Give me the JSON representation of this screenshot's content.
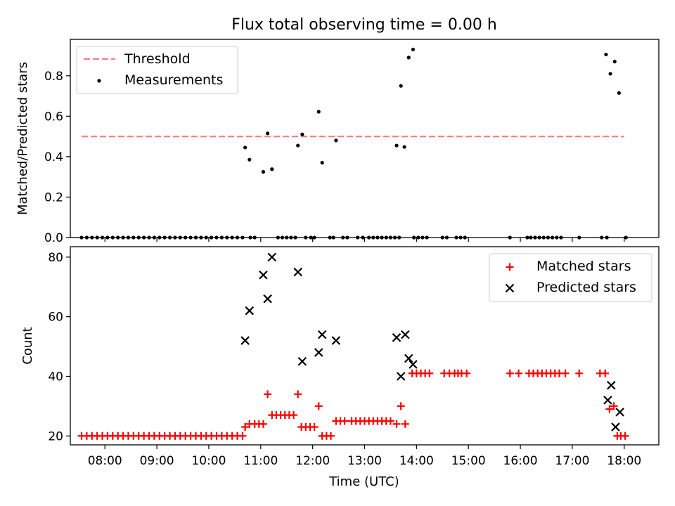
{
  "title": "Flux total observing time = 0.00 h",
  "colors": {
    "threshold": "#ff7f7f",
    "measurement": "#000000",
    "matched": "#ff0000",
    "predicted": "#000000"
  },
  "chart_data": [
    {
      "type": "scatter",
      "panel": "top",
      "xlabel": "",
      "ylabel": "Matched/Predicted stars",
      "xlim": [
        "07:20",
        "18:40"
      ],
      "ylim": [
        0,
        0.98
      ],
      "yticks": [
        0.0,
        0.2,
        0.4,
        0.6,
        0.8
      ],
      "ytick_labels": [
        "0.0",
        "0.2",
        "0.4",
        "0.6",
        "0.8"
      ],
      "legend_position": "top-left",
      "threshold": {
        "name": "Threshold",
        "value": 0.5,
        "x_range": [
          "07:33",
          "18:00"
        ]
      },
      "measurements": {
        "name": "Measurements",
        "points": [
          [
            "07:33",
            0
          ],
          [
            "07:39",
            0
          ],
          [
            "07:45",
            0
          ],
          [
            "07:51",
            0
          ],
          [
            "07:57",
            0
          ],
          [
            "08:03",
            0
          ],
          [
            "08:09",
            0
          ],
          [
            "08:15",
            0
          ],
          [
            "08:21",
            0
          ],
          [
            "08:27",
            0
          ],
          [
            "08:33",
            0
          ],
          [
            "08:39",
            0
          ],
          [
            "08:45",
            0
          ],
          [
            "08:51",
            0
          ],
          [
            "08:57",
            0
          ],
          [
            "09:03",
            0
          ],
          [
            "09:09",
            0
          ],
          [
            "09:15",
            0
          ],
          [
            "09:21",
            0
          ],
          [
            "09:27",
            0
          ],
          [
            "09:33",
            0
          ],
          [
            "09:39",
            0
          ],
          [
            "09:45",
            0
          ],
          [
            "09:51",
            0
          ],
          [
            "09:57",
            0
          ],
          [
            "10:03",
            0
          ],
          [
            "10:09",
            0
          ],
          [
            "10:15",
            0
          ],
          [
            "10:21",
            0
          ],
          [
            "10:27",
            0
          ],
          [
            "10:33",
            0
          ],
          [
            "10:39",
            0
          ],
          [
            "10:48",
            0
          ],
          [
            "10:53",
            0
          ],
          [
            "11:20",
            0
          ],
          [
            "11:25",
            0
          ],
          [
            "11:30",
            0
          ],
          [
            "11:35",
            0
          ],
          [
            "11:40",
            0
          ],
          [
            "11:52",
            0
          ],
          [
            "11:58",
            0
          ],
          [
            "12:02",
            0
          ],
          [
            "12:20",
            0
          ],
          [
            "12:24",
            0
          ],
          [
            "12:35",
            0
          ],
          [
            "12:40",
            0
          ],
          [
            "12:52",
            0
          ],
          [
            "12:58",
            0
          ],
          [
            "13:05",
            0
          ],
          [
            "13:10",
            0
          ],
          [
            "13:15",
            0
          ],
          [
            "13:20",
            0
          ],
          [
            "13:25",
            0
          ],
          [
            "13:30",
            0
          ],
          [
            "13:35",
            0
          ],
          [
            "13:40",
            0
          ],
          [
            "13:57",
            0
          ],
          [
            "14:02",
            0
          ],
          [
            "14:07",
            0
          ],
          [
            "14:12",
            0
          ],
          [
            "14:30",
            0
          ],
          [
            "14:35",
            0
          ],
          [
            "14:46",
            0
          ],
          [
            "14:51",
            0
          ],
          [
            "14:56",
            0
          ],
          [
            "15:48",
            0
          ],
          [
            "16:08",
            0
          ],
          [
            "16:12",
            0
          ],
          [
            "16:17",
            0
          ],
          [
            "16:22",
            0
          ],
          [
            "16:27",
            0
          ],
          [
            "16:32",
            0
          ],
          [
            "16:37",
            0
          ],
          [
            "16:42",
            0
          ],
          [
            "16:47",
            0
          ],
          [
            "17:08",
            0
          ],
          [
            "17:34",
            0
          ],
          [
            "17:40",
            0
          ],
          [
            "18:02",
            0
          ],
          [
            "10:42",
            0.445
          ],
          [
            "10:47",
            0.385
          ],
          [
            "11:03",
            0.325
          ],
          [
            "11:08",
            0.515
          ],
          [
            "11:13",
            0.338
          ],
          [
            "11:43",
            0.455
          ],
          [
            "11:48",
            0.51
          ],
          [
            "12:07",
            0.622
          ],
          [
            "12:11",
            0.37
          ],
          [
            "12:27",
            0.48
          ],
          [
            "13:37",
            0.455
          ],
          [
            "13:42",
            0.75
          ],
          [
            "13:46",
            0.448
          ],
          [
            "13:51",
            0.89
          ],
          [
            "13:56",
            0.93
          ],
          [
            "17:39",
            0.905
          ],
          [
            "17:44",
            0.81
          ],
          [
            "17:49",
            0.87
          ],
          [
            "17:54",
            0.715
          ]
        ]
      }
    },
    {
      "type": "scatter",
      "panel": "bottom",
      "xlabel": "Time (UTC)",
      "ylabel": "Count",
      "xlim": [
        "07:20",
        "18:40"
      ],
      "ylim": [
        17,
        83.5
      ],
      "xticks": [
        "08:00",
        "09:00",
        "10:00",
        "11:00",
        "12:00",
        "13:00",
        "14:00",
        "15:00",
        "16:00",
        "17:00",
        "18:00"
      ],
      "yticks": [
        20,
        40,
        60,
        80
      ],
      "ytick_labels": [
        "20",
        "40",
        "60",
        "80"
      ],
      "legend_position": "top-right",
      "series": [
        {
          "name": "Matched stars",
          "marker": "plus",
          "points": [
            [
              "07:33",
              20
            ],
            [
              "07:39",
              20
            ],
            [
              "07:45",
              20
            ],
            [
              "07:51",
              20
            ],
            [
              "07:57",
              20
            ],
            [
              "08:03",
              20
            ],
            [
              "08:09",
              20
            ],
            [
              "08:15",
              20
            ],
            [
              "08:21",
              20
            ],
            [
              "08:27",
              20
            ],
            [
              "08:33",
              20
            ],
            [
              "08:39",
              20
            ],
            [
              "08:45",
              20
            ],
            [
              "08:51",
              20
            ],
            [
              "08:57",
              20
            ],
            [
              "09:03",
              20
            ],
            [
              "09:09",
              20
            ],
            [
              "09:15",
              20
            ],
            [
              "09:21",
              20
            ],
            [
              "09:27",
              20
            ],
            [
              "09:33",
              20
            ],
            [
              "09:39",
              20
            ],
            [
              "09:45",
              20
            ],
            [
              "09:51",
              20
            ],
            [
              "09:57",
              20
            ],
            [
              "10:03",
              20
            ],
            [
              "10:09",
              20
            ],
            [
              "10:15",
              20
            ],
            [
              "10:21",
              20
            ],
            [
              "10:27",
              20
            ],
            [
              "10:33",
              20
            ],
            [
              "10:39",
              20
            ],
            [
              "10:42",
              23
            ],
            [
              "10:47",
              24
            ],
            [
              "10:53",
              24
            ],
            [
              "10:58",
              24
            ],
            [
              "11:03",
              24
            ],
            [
              "11:08",
              34
            ],
            [
              "11:13",
              27
            ],
            [
              "11:18",
              27
            ],
            [
              "11:23",
              27
            ],
            [
              "11:28",
              27
            ],
            [
              "11:33",
              27
            ],
            [
              "11:38",
              27
            ],
            [
              "11:43",
              34
            ],
            [
              "11:47",
              23
            ],
            [
              "11:52",
              23
            ],
            [
              "11:57",
              23
            ],
            [
              "12:02",
              23
            ],
            [
              "12:07",
              30
            ],
            [
              "12:11",
              20
            ],
            [
              "12:16",
              20
            ],
            [
              "12:21",
              20
            ],
            [
              "12:27",
              25
            ],
            [
              "12:32",
              25
            ],
            [
              "12:37",
              25
            ],
            [
              "12:45",
              25
            ],
            [
              "12:50",
              25
            ],
            [
              "12:55",
              25
            ],
            [
              "13:00",
              25
            ],
            [
              "13:05",
              25
            ],
            [
              "13:10",
              25
            ],
            [
              "13:15",
              25
            ],
            [
              "13:20",
              25
            ],
            [
              "13:25",
              25
            ],
            [
              "13:30",
              25
            ],
            [
              "13:37",
              24
            ],
            [
              "13:42",
              30
            ],
            [
              "13:47",
              24
            ],
            [
              "13:55",
              41
            ],
            [
              "14:00",
              41
            ],
            [
              "14:05",
              41
            ],
            [
              "14:10",
              41
            ],
            [
              "14:15",
              41
            ],
            [
              "14:32",
              41
            ],
            [
              "14:38",
              41
            ],
            [
              "14:44",
              41
            ],
            [
              "14:48",
              41
            ],
            [
              "14:52",
              41
            ],
            [
              "14:58",
              41
            ],
            [
              "15:48",
              41
            ],
            [
              "15:58",
              41
            ],
            [
              "16:10",
              41
            ],
            [
              "16:15",
              41
            ],
            [
              "16:20",
              41
            ],
            [
              "16:25",
              41
            ],
            [
              "16:30",
              41
            ],
            [
              "16:35",
              41
            ],
            [
              "16:40",
              41
            ],
            [
              "16:45",
              41
            ],
            [
              "16:52",
              41
            ],
            [
              "17:08",
              41
            ],
            [
              "17:32",
              41
            ],
            [
              "17:38",
              41
            ],
            [
              "17:43",
              29
            ],
            [
              "17:48",
              30
            ],
            [
              "17:52",
              20
            ],
            [
              "17:56",
              20
            ],
            [
              "18:01",
              20
            ]
          ]
        },
        {
          "name": "Predicted stars",
          "marker": "cross",
          "points": [
            [
              "10:42",
              52
            ],
            [
              "10:47",
              62
            ],
            [
              "11:03",
              74
            ],
            [
              "11:08",
              66
            ],
            [
              "11:13",
              80
            ],
            [
              "11:43",
              75
            ],
            [
              "11:48",
              45
            ],
            [
              "12:07",
              48
            ],
            [
              "12:11",
              54
            ],
            [
              "12:27",
              52
            ],
            [
              "13:37",
              53
            ],
            [
              "13:42",
              40
            ],
            [
              "13:47",
              54
            ],
            [
              "13:51",
              46
            ],
            [
              "13:56",
              44
            ],
            [
              "17:41",
              32
            ],
            [
              "17:45",
              37
            ],
            [
              "17:50",
              23
            ],
            [
              "17:55",
              28
            ]
          ]
        }
      ]
    }
  ]
}
